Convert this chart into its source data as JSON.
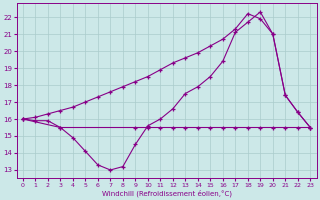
{
  "xlabel": "Windchill (Refroidissement éolien,°C)",
  "bg_color": "#cce8e8",
  "grid_color": "#aacccc",
  "line_color": "#880088",
  "ylim": [
    12.5,
    22.8
  ],
  "xlim": [
    -0.5,
    23.5
  ],
  "yticks": [
    13,
    14,
    15,
    16,
    17,
    18,
    19,
    20,
    21,
    22
  ],
  "xticks": [
    0,
    1,
    2,
    3,
    4,
    5,
    6,
    7,
    8,
    9,
    10,
    11,
    12,
    13,
    14,
    15,
    16,
    17,
    18,
    19,
    20,
    21,
    22,
    23
  ],
  "line1_x": [
    0,
    1,
    2,
    3,
    4,
    5,
    6,
    7,
    8,
    9,
    10,
    11,
    12,
    13,
    14,
    15,
    16,
    17,
    18,
    19,
    20,
    21,
    22,
    23
  ],
  "line1_y": [
    16.0,
    15.9,
    15.9,
    15.5,
    14.9,
    14.1,
    13.3,
    13.0,
    13.2,
    14.5,
    15.6,
    16.0,
    16.6,
    17.5,
    17.9,
    18.5,
    19.4,
    21.1,
    21.7,
    22.3,
    21.0,
    17.4,
    16.4,
    15.5
  ],
  "line2_x": [
    0,
    3,
    9,
    10,
    11,
    12,
    13,
    14,
    15,
    16,
    17,
    18,
    19,
    20,
    21,
    22,
    23
  ],
  "line2_y": [
    16.0,
    15.5,
    15.5,
    15.5,
    15.5,
    15.5,
    15.5,
    15.5,
    15.5,
    15.5,
    15.5,
    15.5,
    15.5,
    15.5,
    15.5,
    15.5,
    15.5
  ],
  "line3_x": [
    0,
    1,
    2,
    3,
    4,
    5,
    6,
    7,
    8,
    9,
    10,
    11,
    12,
    13,
    14,
    15,
    16,
    17,
    18,
    19,
    20,
    21,
    22,
    23
  ],
  "line3_y": [
    16.0,
    16.1,
    16.3,
    16.5,
    16.7,
    17.0,
    17.3,
    17.6,
    17.9,
    18.2,
    18.5,
    18.9,
    19.3,
    19.6,
    19.9,
    20.3,
    20.7,
    21.3,
    22.2,
    21.9,
    21.0,
    17.4,
    16.4,
    15.5
  ]
}
